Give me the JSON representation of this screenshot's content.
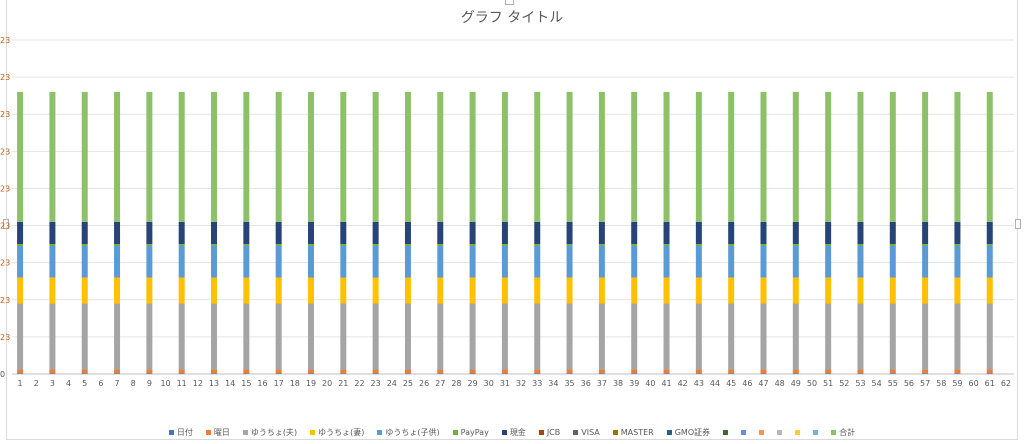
{
  "chart_data": {
    "type": "bar",
    "stacked": true,
    "title": "グラフ タイトル",
    "xlabel": "",
    "ylabel": "",
    "y_tick_labels": [
      "0",
      "23",
      "23",
      "23",
      "23",
      "23",
      "23",
      "23",
      "23",
      "23"
    ],
    "grid": true,
    "legend_position": "bottom",
    "categories": [
      "1",
      "2",
      "3",
      "4",
      "5",
      "6",
      "7",
      "8",
      "9",
      "10",
      "11",
      "12",
      "13",
      "14",
      "15",
      "16",
      "17",
      "18",
      "19",
      "20",
      "21",
      "22",
      "23",
      "24",
      "25",
      "26",
      "27",
      "28",
      "29",
      "30",
      "31",
      "32",
      "33",
      "34",
      "35",
      "36",
      "37",
      "38",
      "39",
      "40",
      "41",
      "42",
      "43",
      "44",
      "45",
      "46",
      "47",
      "48",
      "49",
      "50",
      "51",
      "52",
      "53",
      "54",
      "55",
      "56",
      "57",
      "58",
      "59",
      "60",
      "61",
      "62"
    ],
    "ylim": [
      0,
      9
    ],
    "series": [
      {
        "name": "日付",
        "color": "#4472c4",
        "values": [
          0.02,
          0,
          0.02,
          0,
          0.02,
          0,
          0.02,
          0,
          0.02,
          0,
          0.02,
          0,
          0.02,
          0,
          0.02,
          0,
          0.02,
          0,
          0.02,
          0,
          0.02,
          0,
          0.02,
          0,
          0.02,
          0,
          0.02,
          0,
          0.02,
          0,
          0.02,
          0,
          0.02,
          0,
          0.02,
          0,
          0.02,
          0,
          0.02,
          0,
          0.02,
          0,
          0.02,
          0,
          0.02,
          0,
          0.02,
          0,
          0.02,
          0,
          0.02,
          0,
          0.02,
          0,
          0.02,
          0,
          0.02,
          0,
          0.02,
          0,
          0.02,
          0
        ]
      },
      {
        "name": "曜日",
        "color": "#ed7d31",
        "values": [
          0.1,
          0,
          0.1,
          0,
          0.1,
          0,
          0.1,
          0,
          0.1,
          0,
          0.1,
          0,
          0.1,
          0,
          0.1,
          0,
          0.1,
          0,
          0.1,
          0,
          0.1,
          0,
          0.1,
          0,
          0.1,
          0,
          0.1,
          0,
          0.1,
          0,
          0.1,
          0,
          0.1,
          0,
          0.1,
          0,
          0.1,
          0,
          0.1,
          0,
          0.1,
          0,
          0.1,
          0,
          0.1,
          0,
          0.1,
          0,
          0.1,
          0,
          0.1,
          0,
          0.1,
          0,
          0.1,
          0,
          0.1,
          0,
          0.1,
          0,
          0.1,
          0
        ]
      },
      {
        "name": "ゆうちょ(夫)",
        "color": "#a5a5a5",
        "values": [
          1.78,
          0,
          1.78,
          0,
          1.78,
          0,
          1.78,
          0,
          1.78,
          0,
          1.78,
          0,
          1.78,
          0,
          1.78,
          0,
          1.78,
          0,
          1.78,
          0,
          1.78,
          0,
          1.78,
          0,
          1.78,
          0,
          1.78,
          0,
          1.78,
          0,
          1.78,
          0,
          1.78,
          0,
          1.78,
          0,
          1.78,
          0,
          1.78,
          0,
          1.78,
          0,
          1.78,
          0,
          1.78,
          0,
          1.78,
          0,
          1.78,
          0,
          1.78,
          0,
          1.78,
          0,
          1.78,
          0,
          1.78,
          0,
          1.78,
          0,
          1.78,
          0
        ]
      },
      {
        "name": "ゆうちょ(妻)",
        "color": "#ffc000",
        "values": [
          0.7,
          0,
          0.7,
          0,
          0.7,
          0,
          0.7,
          0,
          0.7,
          0,
          0.7,
          0,
          0.7,
          0,
          0.7,
          0,
          0.7,
          0,
          0.7,
          0,
          0.7,
          0,
          0.7,
          0,
          0.7,
          0,
          0.7,
          0,
          0.7,
          0,
          0.7,
          0,
          0.7,
          0,
          0.7,
          0,
          0.7,
          0,
          0.7,
          0,
          0.7,
          0,
          0.7,
          0,
          0.7,
          0,
          0.7,
          0,
          0.7,
          0,
          0.7,
          0,
          0.7,
          0,
          0.7,
          0,
          0.7,
          0,
          0.7,
          0,
          0.7,
          0
        ]
      },
      {
        "name": "ゆうちょ(子供)",
        "color": "#5b9bd5",
        "values": [
          0.85,
          0,
          0.85,
          0,
          0.85,
          0,
          0.85,
          0,
          0.85,
          0,
          0.85,
          0,
          0.85,
          0,
          0.85,
          0,
          0.85,
          0,
          0.85,
          0,
          0.85,
          0,
          0.85,
          0,
          0.85,
          0,
          0.85,
          0,
          0.85,
          0,
          0.85,
          0,
          0.85,
          0,
          0.85,
          0,
          0.85,
          0,
          0.85,
          0,
          0.85,
          0,
          0.85,
          0,
          0.85,
          0,
          0.85,
          0,
          0.85,
          0,
          0.85,
          0,
          0.85,
          0,
          0.85,
          0,
          0.85,
          0,
          0.85,
          0,
          0.85,
          0
        ]
      },
      {
        "name": "PayPay",
        "color": "#70ad47",
        "values": [
          0.05,
          0,
          0.05,
          0,
          0.05,
          0,
          0.05,
          0,
          0.05,
          0,
          0.05,
          0,
          0.05,
          0,
          0.05,
          0,
          0.05,
          0,
          0.05,
          0,
          0.05,
          0,
          0.05,
          0,
          0.05,
          0,
          0.05,
          0,
          0.05,
          0,
          0.05,
          0,
          0.05,
          0,
          0.05,
          0,
          0.05,
          0,
          0.05,
          0,
          0.05,
          0,
          0.05,
          0,
          0.05,
          0,
          0.05,
          0,
          0.05,
          0,
          0.05,
          0,
          0.05,
          0,
          0.05,
          0,
          0.05,
          0,
          0.05,
          0,
          0.05,
          0
        ]
      },
      {
        "name": "現金",
        "color": "#264478",
        "values": [
          0.6,
          0,
          0.6,
          0,
          0.6,
          0,
          0.6,
          0,
          0.6,
          0,
          0.6,
          0,
          0.6,
          0,
          0.6,
          0,
          0.6,
          0,
          0.6,
          0,
          0.6,
          0,
          0.6,
          0,
          0.6,
          0,
          0.6,
          0,
          0.6,
          0,
          0.6,
          0,
          0.6,
          0,
          0.6,
          0,
          0.6,
          0,
          0.6,
          0,
          0.6,
          0,
          0.6,
          0,
          0.6,
          0,
          0.6,
          0,
          0.6,
          0,
          0.6,
          0,
          0.6,
          0,
          0.6,
          0,
          0.6,
          0,
          0.6,
          0,
          0.6,
          0
        ]
      },
      {
        "name": "JCB",
        "color": "#9e480e",
        "values": [
          0,
          0,
          0,
          0,
          0,
          0,
          0,
          0,
          0,
          0,
          0,
          0,
          0,
          0,
          0,
          0,
          0,
          0,
          0,
          0,
          0,
          0,
          0,
          0,
          0,
          0,
          0,
          0,
          0,
          0,
          0,
          0,
          0,
          0,
          0,
          0,
          0,
          0,
          0,
          0,
          0,
          0,
          0,
          0,
          0,
          0,
          0,
          0,
          0,
          0,
          0,
          0,
          0,
          0,
          0,
          0,
          0,
          0,
          0,
          0,
          0,
          0
        ]
      },
      {
        "name": "VISA",
        "color": "#636363",
        "values": [
          0,
          0,
          0,
          0,
          0,
          0,
          0,
          0,
          0,
          0,
          0,
          0,
          0,
          0,
          0,
          0,
          0,
          0,
          0,
          0,
          0,
          0,
          0,
          0,
          0,
          0,
          0,
          0,
          0,
          0,
          0,
          0,
          0,
          0,
          0,
          0,
          0,
          0,
          0,
          0,
          0,
          0,
          0,
          0,
          0,
          0,
          0,
          0,
          0,
          0,
          0,
          0,
          0,
          0,
          0,
          0,
          0,
          0,
          0,
          0,
          0,
          0
        ]
      },
      {
        "name": "MASTER",
        "color": "#997300",
        "values": [
          0,
          0,
          0,
          0,
          0,
          0,
          0,
          0,
          0,
          0,
          0,
          0,
          0,
          0,
          0,
          0,
          0,
          0,
          0,
          0,
          0,
          0,
          0,
          0,
          0,
          0,
          0,
          0,
          0,
          0,
          0,
          0,
          0,
          0,
          0,
          0,
          0,
          0,
          0,
          0,
          0,
          0,
          0,
          0,
          0,
          0,
          0,
          0,
          0,
          0,
          0,
          0,
          0,
          0,
          0,
          0,
          0,
          0,
          0,
          0,
          0,
          0
        ]
      },
      {
        "name": "GMO証券",
        "color": "#255e91",
        "values": [
          0,
          0,
          0,
          0,
          0,
          0,
          0,
          0,
          0,
          0,
          0,
          0,
          0,
          0,
          0,
          0,
          0,
          0,
          0,
          0,
          0,
          0,
          0,
          0,
          0,
          0,
          0,
          0,
          0,
          0,
          0,
          0,
          0,
          0,
          0,
          0,
          0,
          0,
          0,
          0,
          0,
          0,
          0,
          0,
          0,
          0,
          0,
          0,
          0,
          0,
          0,
          0,
          0,
          0,
          0,
          0,
          0,
          0,
          0,
          0,
          0,
          0
        ]
      },
      {
        "name": "",
        "color": "#43682b",
        "values": [
          0,
          0,
          0,
          0,
          0,
          0,
          0,
          0,
          0,
          0,
          0,
          0,
          0,
          0,
          0,
          0,
          0,
          0,
          0,
          0,
          0,
          0,
          0,
          0,
          0,
          0,
          0,
          0,
          0,
          0,
          0,
          0,
          0,
          0,
          0,
          0,
          0,
          0,
          0,
          0,
          0,
          0,
          0,
          0,
          0,
          0,
          0,
          0,
          0,
          0,
          0,
          0,
          0,
          0,
          0,
          0,
          0,
          0,
          0,
          0,
          0,
          0
        ]
      },
      {
        "name": "",
        "color": "#698ed0",
        "values": [
          0,
          0,
          0,
          0,
          0,
          0,
          0,
          0,
          0,
          0,
          0,
          0,
          0,
          0,
          0,
          0,
          0,
          0,
          0,
          0,
          0,
          0,
          0,
          0,
          0,
          0,
          0,
          0,
          0,
          0,
          0,
          0,
          0,
          0,
          0,
          0,
          0,
          0,
          0,
          0,
          0,
          0,
          0,
          0,
          0,
          0,
          0,
          0,
          0,
          0,
          0,
          0,
          0,
          0,
          0,
          0,
          0,
          0,
          0,
          0,
          0,
          0
        ]
      },
      {
        "name": "",
        "color": "#f1975a",
        "values": [
          0,
          0,
          0,
          0,
          0,
          0,
          0,
          0,
          0,
          0,
          0,
          0,
          0,
          0,
          0,
          0,
          0,
          0,
          0,
          0,
          0,
          0,
          0,
          0,
          0,
          0,
          0,
          0,
          0,
          0,
          0,
          0,
          0,
          0,
          0,
          0,
          0,
          0,
          0,
          0,
          0,
          0,
          0,
          0,
          0,
          0,
          0,
          0,
          0,
          0,
          0,
          0,
          0,
          0,
          0,
          0,
          0,
          0,
          0,
          0,
          0,
          0
        ]
      },
      {
        "name": "",
        "color": "#b7b7b7",
        "values": [
          0,
          0,
          0,
          0,
          0,
          0,
          0,
          0,
          0,
          0,
          0,
          0,
          0,
          0,
          0,
          0,
          0,
          0,
          0,
          0,
          0,
          0,
          0,
          0,
          0,
          0,
          0,
          0,
          0,
          0,
          0,
          0,
          0,
          0,
          0,
          0,
          0,
          0,
          0,
          0,
          0,
          0,
          0,
          0,
          0,
          0,
          0,
          0,
          0,
          0,
          0,
          0,
          0,
          0,
          0,
          0,
          0,
          0,
          0,
          0,
          0,
          0
        ]
      },
      {
        "name": "",
        "color": "#ffcd33",
        "values": [
          0,
          0,
          0,
          0,
          0,
          0,
          0,
          0,
          0,
          0,
          0,
          0,
          0,
          0,
          0,
          0,
          0,
          0,
          0,
          0,
          0,
          0,
          0,
          0,
          0,
          0,
          0,
          0,
          0,
          0,
          0,
          0,
          0,
          0,
          0,
          0,
          0,
          0,
          0,
          0,
          0,
          0,
          0,
          0,
          0,
          0,
          0,
          0,
          0,
          0,
          0,
          0,
          0,
          0,
          0,
          0,
          0,
          0,
          0,
          0,
          0,
          0
        ]
      },
      {
        "name": "",
        "color": "#7cafdd",
        "values": [
          0,
          0,
          0,
          0,
          0,
          0,
          0,
          0,
          0,
          0,
          0,
          0,
          0,
          0,
          0,
          0,
          0,
          0,
          0,
          0,
          0,
          0,
          0,
          0,
          0,
          0,
          0,
          0,
          0,
          0,
          0,
          0,
          0,
          0,
          0,
          0,
          0,
          0,
          0,
          0,
          0,
          0,
          0,
          0,
          0,
          0,
          0,
          0,
          0,
          0,
          0,
          0,
          0,
          0,
          0,
          0,
          0,
          0,
          0,
          0,
          0,
          0
        ]
      },
      {
        "name": "合計",
        "color": "#8cc168",
        "values": [
          3.5,
          0,
          3.5,
          0,
          3.5,
          0,
          3.5,
          0,
          3.5,
          0,
          3.5,
          0,
          3.5,
          0,
          3.5,
          0,
          3.5,
          0,
          3.5,
          0,
          3.5,
          0,
          3.5,
          0,
          3.5,
          0,
          3.5,
          0,
          3.5,
          0,
          3.5,
          0,
          3.5,
          0,
          3.5,
          0,
          3.5,
          0,
          3.5,
          0,
          3.5,
          0,
          3.5,
          0,
          3.5,
          0,
          3.5,
          0,
          3.5,
          0,
          3.5,
          0,
          3.5,
          0,
          3.5,
          0,
          3.5,
          0,
          3.5,
          0,
          3.5,
          0
        ]
      }
    ]
  }
}
